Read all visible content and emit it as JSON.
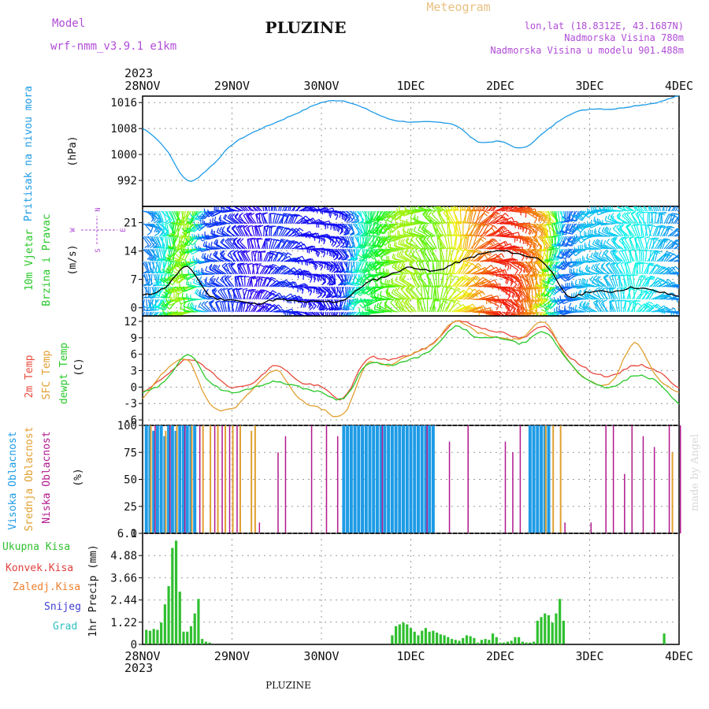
{
  "header": {
    "model_label": "Model",
    "model_value": "wrf-nmm_v3.9.1  e1km",
    "station": "PLUZINE",
    "meteogram_label": "Meteogram",
    "lonlat": "lon,lat (18.8312E, 43.1687N)",
    "altitude": "Nadmorska Visina 780m",
    "altitude_model": "Nadmorska Visina u modelu 901.488m",
    "year": "2023",
    "footer_station": "PLUZINE",
    "watermark": "made by Angel"
  },
  "colors": {
    "pressure": "#1e9be6",
    "temp2m": "#e84a3c",
    "tempsfc": "#e0a030",
    "dewpt": "#28c828",
    "cloud_high": "#1e9be6",
    "cloud_mid": "#e0a030",
    "cloud_low": "#b0188c",
    "precip_total": "#30c030",
    "precip_conv": "#e04040",
    "precip_frozen": "#f08030",
    "snow": "#4040d0",
    "graupel": "#30c0c0"
  },
  "compass": {
    "n": "N",
    "s": "S",
    "w": "W",
    "e": "E"
  },
  "chart_data": [
    {
      "type": "line",
      "name": "pressure",
      "ylabel_colored": "Pritisak na nivou mora",
      "ylabel_unit": "(hPa)",
      "x_ticks": [
        "28NOV",
        "29NOV",
        "30NOV",
        "1DEC",
        "2DEC",
        "3DEC",
        "4DEC"
      ],
      "ylim": [
        984,
        1018
      ],
      "yticks": [
        992,
        1000,
        1008,
        1016
      ],
      "x_hours": [
        0,
        6,
        12,
        18,
        24,
        30,
        36,
        42,
        48,
        54,
        60,
        66,
        72,
        78,
        84,
        90,
        96,
        102,
        108,
        114,
        120,
        126,
        132,
        138,
        144
      ],
      "values": [
        1008,
        1002,
        992,
        996,
        1003,
        1007,
        1010,
        1013,
        1016,
        1016.5,
        1014,
        1011,
        1010,
        1010,
        1009,
        1004,
        1004,
        1002,
        1007,
        1012,
        1014,
        1014,
        1015,
        1016,
        1018
      ]
    },
    {
      "type": "line",
      "name": "wind",
      "ylabel_colored_1": "10m Vjetar",
      "ylabel_colored_2": "Brzina i Pravac",
      "ylabel_unit": "(m/s)",
      "ylim": [
        -2,
        25
      ],
      "yticks": [
        0,
        7,
        14,
        21
      ],
      "x_hours": [
        0,
        6,
        12,
        18,
        24,
        30,
        36,
        42,
        48,
        54,
        60,
        66,
        72,
        78,
        84,
        90,
        96,
        102,
        108,
        114,
        120,
        126,
        132,
        138,
        144
      ],
      "values": [
        3,
        5,
        10,
        3,
        2,
        1,
        2,
        1.5,
        1.5,
        2,
        6,
        8,
        10,
        9,
        11,
        13,
        14,
        13,
        11,
        3,
        4,
        4,
        5,
        4,
        3
      ]
    },
    {
      "type": "line",
      "name": "temperature",
      "ylabel_1": "2m Temp",
      "ylabel_2": "SFC Temp",
      "ylabel_3": "dewpt Temp",
      "ylabel_unit": "(C)",
      "ylim": [
        -7,
        13
      ],
      "yticks": [
        -6,
        -3,
        0,
        3,
        6,
        9,
        12
      ],
      "x_hours": [
        0,
        6,
        12,
        18,
        24,
        30,
        36,
        42,
        48,
        54,
        60,
        66,
        72,
        78,
        84,
        90,
        96,
        102,
        108,
        114,
        120,
        126,
        132,
        138,
        144
      ],
      "series": [
        {
          "name": "2m Temp",
          "values": [
            -1,
            2,
            5,
            3,
            0,
            1,
            4,
            1,
            0,
            -2,
            5,
            5,
            6,
            8,
            12,
            11,
            10,
            9,
            11,
            6,
            3,
            2,
            4,
            3,
            0
          ]
        },
        {
          "name": "SFC Temp",
          "values": [
            -2,
            3,
            5,
            -3,
            -4,
            0,
            3,
            -2,
            -4,
            -5,
            4,
            4,
            6,
            8,
            12,
            10,
            9,
            9,
            12,
            5,
            1,
            1,
            8,
            2,
            -1
          ]
        },
        {
          "name": "dewpt Temp",
          "values": [
            -1,
            1,
            6,
            1,
            -1,
            0,
            1,
            0,
            -1,
            -2,
            4,
            4,
            5,
            7,
            11,
            9,
            9,
            8,
            10,
            5,
            1,
            0,
            2,
            1,
            -3
          ]
        }
      ]
    },
    {
      "type": "bar",
      "name": "clouds",
      "ylabel_1": "Visoka Oblacnost",
      "ylabel_2": "Srednja Oblacnost",
      "ylabel_3": "Niska Oblacnost",
      "ylabel_unit": "(%)",
      "ylim": [
        0,
        100
      ],
      "yticks": [
        0,
        25,
        50,
        75,
        100
      ],
      "high_hours": [
        1,
        2,
        3,
        4,
        5,
        6,
        7,
        8,
        9,
        10,
        11,
        12,
        13,
        14,
        54,
        55,
        56,
        57,
        58,
        59,
        60,
        61,
        62,
        63,
        64,
        65,
        66,
        67,
        68,
        69,
        70,
        71,
        72,
        73,
        74,
        75,
        76,
        77,
        78,
        104,
        105,
        106,
        107,
        108,
        109
      ],
      "high_values": [
        100,
        100,
        95,
        100,
        100,
        90,
        100,
        100,
        95,
        100,
        100,
        100,
        100,
        100,
        100,
        100,
        100,
        100,
        100,
        100,
        100,
        100,
        100,
        100,
        100,
        100,
        100,
        100,
        100,
        100,
        100,
        100,
        100,
        100,
        100,
        100,
        100,
        100,
        100,
        100,
        100,
        100,
        100,
        100,
        100
      ],
      "mid_hours": [
        2,
        6,
        9,
        13,
        16,
        18,
        20,
        22,
        24,
        26,
        29,
        30,
        108,
        110,
        112,
        142
      ],
      "mid_values": [
        100,
        95,
        100,
        100,
        100,
        100,
        100,
        100,
        100,
        100,
        95,
        100,
        100,
        100,
        100,
        75
      ],
      "low_hours": [
        3,
        7,
        11,
        15,
        19,
        21,
        23,
        25,
        31,
        36,
        38,
        45,
        49,
        52,
        64,
        76,
        82,
        87,
        97,
        99,
        101,
        113,
        120,
        124,
        126,
        129,
        131,
        134,
        137,
        141,
        144
      ],
      "low_values": [
        100,
        100,
        100,
        100,
        100,
        100,
        100,
        100,
        10,
        75,
        90,
        100,
        100,
        90,
        100,
        100,
        85,
        100,
        85,
        75,
        100,
        10,
        10,
        100,
        100,
        55,
        100,
        90,
        80,
        100,
        100
      ]
    },
    {
      "type": "bar",
      "name": "precip",
      "ylabel_1": "Ukupna Kisa",
      "ylabel_2": "Konvek.Kisa",
      "ylabel_3": "Zaledj.Kisa",
      "ylabel_4": "Snijeg",
      "ylabel_5": "Grad",
      "ylabel_unit": "1hr Precip (mm)",
      "ylim": [
        0,
        6.1
      ],
      "yticks": [
        0,
        1.22,
        2.44,
        3.66,
        4.88,
        6.1
      ],
      "hours": [
        1,
        2,
        3,
        4,
        5,
        6,
        7,
        8,
        9,
        10,
        11,
        12,
        13,
        14,
        15,
        16,
        17,
        18,
        67,
        68,
        69,
        70,
        71,
        72,
        73,
        74,
        75,
        76,
        77,
        78,
        79,
        80,
        81,
        82,
        83,
        84,
        85,
        86,
        87,
        88,
        89,
        90,
        91,
        92,
        93,
        94,
        95,
        96,
        97,
        98,
        99,
        100,
        101,
        102,
        103,
        104,
        105,
        106,
        107,
        108,
        109,
        110,
        111,
        112,
        113,
        140
      ],
      "values": [
        0.8,
        0.75,
        0.85,
        0.8,
        1.2,
        2.2,
        3.2,
        5.3,
        5.7,
        2.9,
        0.7,
        0.7,
        1.0,
        1.7,
        2.5,
        0.3,
        0.15,
        0.1,
        0.5,
        1.0,
        1.1,
        1.2,
        1.1,
        0.9,
        0.7,
        0.5,
        0.75,
        0.9,
        0.7,
        0.75,
        0.65,
        0.55,
        0.5,
        0.4,
        0.3,
        0.25,
        0.2,
        0.35,
        0.5,
        0.45,
        0.35,
        0.1,
        0.25,
        0.3,
        0.25,
        0.6,
        0.4,
        0.1,
        0.1,
        0.15,
        0.2,
        0.4,
        0.4,
        0.15,
        0.1,
        0.1,
        0.15,
        1.3,
        1.5,
        1.7,
        1.6,
        1.2,
        1.7,
        2.5,
        1.3,
        0.6
      ]
    }
  ]
}
